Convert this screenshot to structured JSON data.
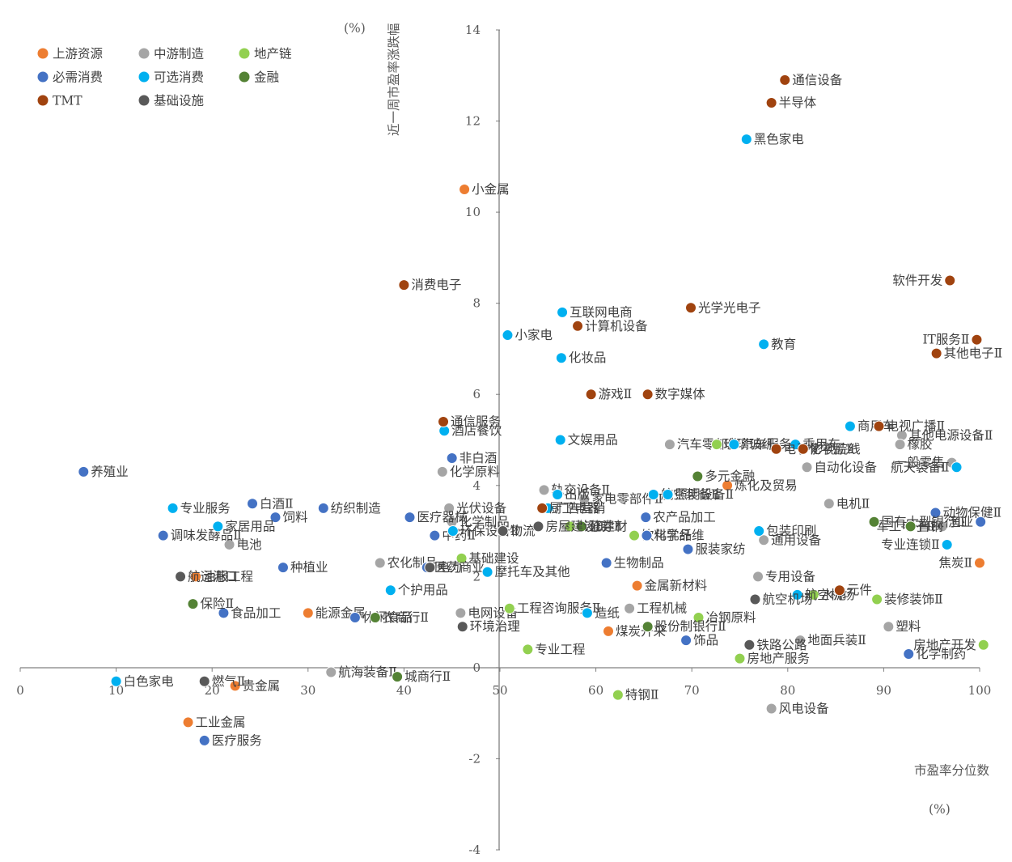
{
  "chart_data": {
    "type": "scatter",
    "title": "",
    "xlabel": "市盈率分位数",
    "ylabel": "近一周市盈率涨跌幅",
    "x_unit": "(%)",
    "y_unit": "(%)",
    "xlim": [
      0,
      100
    ],
    "ylim": [
      -4,
      14
    ],
    "x_ticks": [
      "0",
      "10",
      "20",
      "30",
      "40",
      "50",
      "60",
      "70",
      "80",
      "90",
      "100"
    ],
    "y_ticks": [
      "-4",
      "-2",
      "0",
      "2",
      "4",
      "6",
      "8",
      "10",
      "12",
      "14"
    ],
    "grid": false,
    "legend_position": "top-left",
    "series": [
      {
        "name": "上游资源",
        "color": "#ED7D31",
        "points": [
          {
            "label": "小金属",
            "x": 46.3,
            "y": 10.5
          },
          {
            "label": "油服工程",
            "x": 18.3,
            "y": 2.0
          },
          {
            "label": "能源金属",
            "x": 30.0,
            "y": 1.2
          },
          {
            "label": "贵金属",
            "x": 22.4,
            "y": -0.4
          },
          {
            "label": "工业金属",
            "x": 17.5,
            "y": -1.2
          },
          {
            "label": "炼化及贸易",
            "x": 73.7,
            "y": 4.0
          },
          {
            "label": "金属新材料",
            "x": 64.3,
            "y": 1.8
          },
          {
            "label": "煤炭开采",
            "x": 61.3,
            "y": 0.8
          },
          {
            "label": "焦炭Ⅱ",
            "x": 100.0,
            "y": 2.3
          }
        ]
      },
      {
        "name": "中游制造",
        "color": "#A5A5A5",
        "points": [
          {
            "label": "电池",
            "x": 21.8,
            "y": 2.7
          },
          {
            "label": "航海装备Ⅱ",
            "x": 32.4,
            "y": -0.1
          },
          {
            "label": "农化制品",
            "x": 37.5,
            "y": 2.3
          },
          {
            "label": "化学原料",
            "x": 44.0,
            "y": 4.3
          },
          {
            "label": "光伏设备",
            "x": 44.7,
            "y": 3.5
          },
          {
            "label": "化学制品",
            "x": 45.0,
            "y": 3.2
          },
          {
            "label": "电网设备",
            "x": 45.9,
            "y": 1.2
          },
          {
            "label": "轨交设备Ⅱ",
            "x": 54.6,
            "y": 3.9
          },
          {
            "label": "家电零部件Ⅱ",
            "x": 58.8,
            "y": 3.7
          },
          {
            "label": "工程机械",
            "x": 63.5,
            "y": 1.3
          },
          {
            "label": "汽车零部件",
            "x": 67.7,
            "y": 4.9
          },
          {
            "label": "通用设备",
            "x": 77.5,
            "y": 2.8
          },
          {
            "label": "专用设备",
            "x": 76.9,
            "y": 2.0
          },
          {
            "label": "自动化设备",
            "x": 82.0,
            "y": 4.4
          },
          {
            "label": "电机Ⅱ",
            "x": 84.3,
            "y": 3.6
          },
          {
            "label": "地面兵装Ⅱ",
            "x": 81.3,
            "y": 0.6
          },
          {
            "label": "风电设备",
            "x": 78.3,
            "y": -0.9
          },
          {
            "label": "塑料",
            "x": 90.5,
            "y": 0.9
          },
          {
            "label": "其他电源设备Ⅱ",
            "x": 91.9,
            "y": 5.1
          },
          {
            "label": "橡胶",
            "x": 91.7,
            "y": 4.9
          },
          {
            "label": "一般零售",
            "x": 97.1,
            "y": 4.5
          },
          {
            "label": "军工电子Ⅱ",
            "x": 96.1,
            "y": 3.1
          }
        ]
      },
      {
        "name": "地产链",
        "color": "#92D050",
        "points": [
          {
            "label": "基础建设",
            "x": 46.0,
            "y": 2.4
          },
          {
            "label": "工程咨询服务Ⅱ",
            "x": 51.0,
            "y": 1.3
          },
          {
            "label": "专业工程",
            "x": 52.9,
            "y": 0.4
          },
          {
            "label": "装修建材",
            "x": 57.3,
            "y": 3.1
          },
          {
            "label": "玻璃玻纤",
            "x": 72.6,
            "y": 4.9
          },
          {
            "label": "冶钢原料",
            "x": 70.7,
            "y": 1.1
          },
          {
            "label": "房地产服务",
            "x": 75.0,
            "y": 0.2
          },
          {
            "label": "水泥",
            "x": 82.7,
            "y": 1.6
          },
          {
            "label": "装修装饰Ⅱ",
            "x": 89.3,
            "y": 1.5
          },
          {
            "label": "房地产开发",
            "x": 100.4,
            "y": 0.5
          },
          {
            "label": "特钢Ⅱ",
            "x": 62.3,
            "y": -0.6
          },
          {
            "label": "饮料乳品",
            "x": 64.0,
            "y": 2.9
          }
        ]
      },
      {
        "name": "必需消费",
        "color": "#4472C4",
        "points": [
          {
            "label": "养殖业",
            "x": 6.6,
            "y": 4.3
          },
          {
            "label": "调味发酵品Ⅱ",
            "x": 14.9,
            "y": 2.9
          },
          {
            "label": "白酒Ⅱ",
            "x": 24.2,
            "y": 3.6
          },
          {
            "label": "饲料",
            "x": 26.6,
            "y": 3.3
          },
          {
            "label": "纺织制造",
            "x": 31.6,
            "y": 3.5
          },
          {
            "label": "种植业",
            "x": 27.4,
            "y": 2.2
          },
          {
            "label": "食品加工",
            "x": 21.2,
            "y": 1.2
          },
          {
            "label": "休闲食品",
            "x": 34.9,
            "y": 1.1
          },
          {
            "label": "医疗器械",
            "x": 40.6,
            "y": 3.3
          },
          {
            "label": "中药Ⅱ",
            "x": 43.2,
            "y": 2.9
          },
          {
            "label": "医药商业",
            "x": 42.4,
            "y": 2.2
          },
          {
            "label": "非白酒",
            "x": 45.0,
            "y": 4.6
          },
          {
            "label": "医疗服务",
            "x": 19.2,
            "y": -1.6
          },
          {
            "label": "生物制品",
            "x": 61.1,
            "y": 2.3
          },
          {
            "label": "农产品加工",
            "x": 65.2,
            "y": 3.3
          },
          {
            "label": "化学纤维",
            "x": 65.3,
            "y": 2.9
          },
          {
            "label": "服装家纺",
            "x": 69.6,
            "y": 2.6
          },
          {
            "label": "饰品",
            "x": 69.4,
            "y": 0.6
          },
          {
            "label": "动物保健Ⅱ",
            "x": 95.4,
            "y": 3.4
          },
          {
            "label": "渔业",
            "x": 100.1,
            "y": 3.2
          },
          {
            "label": "化学制药",
            "x": 92.6,
            "y": 0.3
          }
        ]
      },
      {
        "name": "可选消费",
        "color": "#00B0F0",
        "points": [
          {
            "label": "专业服务",
            "x": 15.9,
            "y": 3.5
          },
          {
            "label": "家居用品",
            "x": 20.6,
            "y": 3.1
          },
          {
            "label": "白色家电",
            "x": 10.0,
            "y": -0.3
          },
          {
            "label": "酒店餐饮",
            "x": 44.2,
            "y": 5.2
          },
          {
            "label": "个护用品",
            "x": 38.6,
            "y": 1.7
          },
          {
            "label": "摩托车及其他",
            "x": 48.7,
            "y": 2.1
          },
          {
            "label": "环保设备Ⅱ",
            "x": 45.1,
            "y": 3.0
          },
          {
            "label": "小家电",
            "x": 50.8,
            "y": 7.3
          },
          {
            "label": "互联网电商",
            "x": 56.5,
            "y": 7.8
          },
          {
            "label": "化妆品",
            "x": 56.4,
            "y": 6.8
          },
          {
            "label": "文娱用品",
            "x": 56.3,
            "y": 5.0
          },
          {
            "label": "广告营销",
            "x": 55.0,
            "y": 3.5
          },
          {
            "label": "出版",
            "x": 56.0,
            "y": 3.8
          },
          {
            "label": "航空装备Ⅱ",
            "x": 66.0,
            "y": 3.8
          },
          {
            "label": "照明设备Ⅱ",
            "x": 67.5,
            "y": 3.8
          },
          {
            "label": "造纸",
            "x": 59.1,
            "y": 1.2
          },
          {
            "label": "教育",
            "x": 77.5,
            "y": 7.1
          },
          {
            "label": "黑色家电",
            "x": 75.7,
            "y": 11.6
          },
          {
            "label": "商用车",
            "x": 86.5,
            "y": 5.3
          },
          {
            "label": "乘用车",
            "x": 80.8,
            "y": 4.9
          },
          {
            "label": "包装印刷",
            "x": 77.0,
            "y": 3.0
          },
          {
            "label": "航空机场",
            "x": 81.0,
            "y": 1.6
          },
          {
            "label": "航天装备Ⅱ",
            "x": 97.6,
            "y": 4.4
          },
          {
            "label": "专业连锁Ⅱ",
            "x": 96.6,
            "y": 2.7
          },
          {
            "label": "汽车服务",
            "x": 74.4,
            "y": 4.9
          }
        ]
      },
      {
        "name": "金融",
        "color": "#548235",
        "points": [
          {
            "label": "保险Ⅱ",
            "x": 18.0,
            "y": 1.4
          },
          {
            "label": "农商行Ⅱ",
            "x": 37.0,
            "y": 1.1
          },
          {
            "label": "城商行Ⅱ",
            "x": 39.3,
            "y": -0.2
          },
          {
            "label": "证券Ⅱ",
            "x": 58.5,
            "y": 3.1
          },
          {
            "label": "多元金融",
            "x": 70.6,
            "y": 4.2
          },
          {
            "label": "股份制银行Ⅱ",
            "x": 65.4,
            "y": 0.9
          },
          {
            "label": "国有大型银行Ⅱ",
            "x": 89.0,
            "y": 3.2
          },
          {
            "label": "普钢",
            "x": 92.8,
            "y": 3.1
          }
        ]
      },
      {
        "name": "TMT",
        "color": "#A0430F",
        "points": [
          {
            "label": "消费电子",
            "x": 40.0,
            "y": 8.4
          },
          {
            "label": "通信服务",
            "x": 44.1,
            "y": 5.4
          },
          {
            "label": "计算机设备",
            "x": 58.1,
            "y": 7.5
          },
          {
            "label": "游戏Ⅱ",
            "x": 59.5,
            "y": 6.0
          },
          {
            "label": "数字媒体",
            "x": 65.4,
            "y": 6.0
          },
          {
            "label": "光学光电子",
            "x": 69.9,
            "y": 7.9
          },
          {
            "label": "通信设备",
            "x": 79.7,
            "y": 12.9
          },
          {
            "label": "半导体",
            "x": 78.3,
            "y": 12.4
          },
          {
            "label": "电子化学品Ⅱ",
            "x": 78.8,
            "y": 4.8
          },
          {
            "label": "影视院线",
            "x": 81.6,
            "y": 4.8
          },
          {
            "label": "电视广播Ⅱ",
            "x": 89.5,
            "y": 5.3
          },
          {
            "label": "元件",
            "x": 85.4,
            "y": 1.7
          },
          {
            "label": "软件开发",
            "x": 96.9,
            "y": 8.5
          },
          {
            "label": "IT服务Ⅱ",
            "x": 99.7,
            "y": 7.2
          },
          {
            "label": "其他电子Ⅱ",
            "x": 95.5,
            "y": 6.9
          },
          {
            "label": "厨卫电器",
            "x": 54.4,
            "y": 3.5
          }
        ]
      },
      {
        "name": "基础设施",
        "color": "#595959",
        "points": [
          {
            "label": "燃气Ⅱ",
            "x": 19.2,
            "y": -0.3
          },
          {
            "label": "航运港口",
            "x": 16.7,
            "y": 2.0
          },
          {
            "label": "电力",
            "x": 42.7,
            "y": 2.2
          },
          {
            "label": "环境治理",
            "x": 46.1,
            "y": 0.9
          },
          {
            "label": "物流",
            "x": 50.3,
            "y": 3.0
          },
          {
            "label": "房屋建设Ⅱ",
            "x": 54.0,
            "y": 3.1
          },
          {
            "label": "铁路公路",
            "x": 76.0,
            "y": 0.5
          },
          {
            "label": "航空机场",
            "x": 76.6,
            "y": 1.5
          }
        ]
      }
    ]
  }
}
